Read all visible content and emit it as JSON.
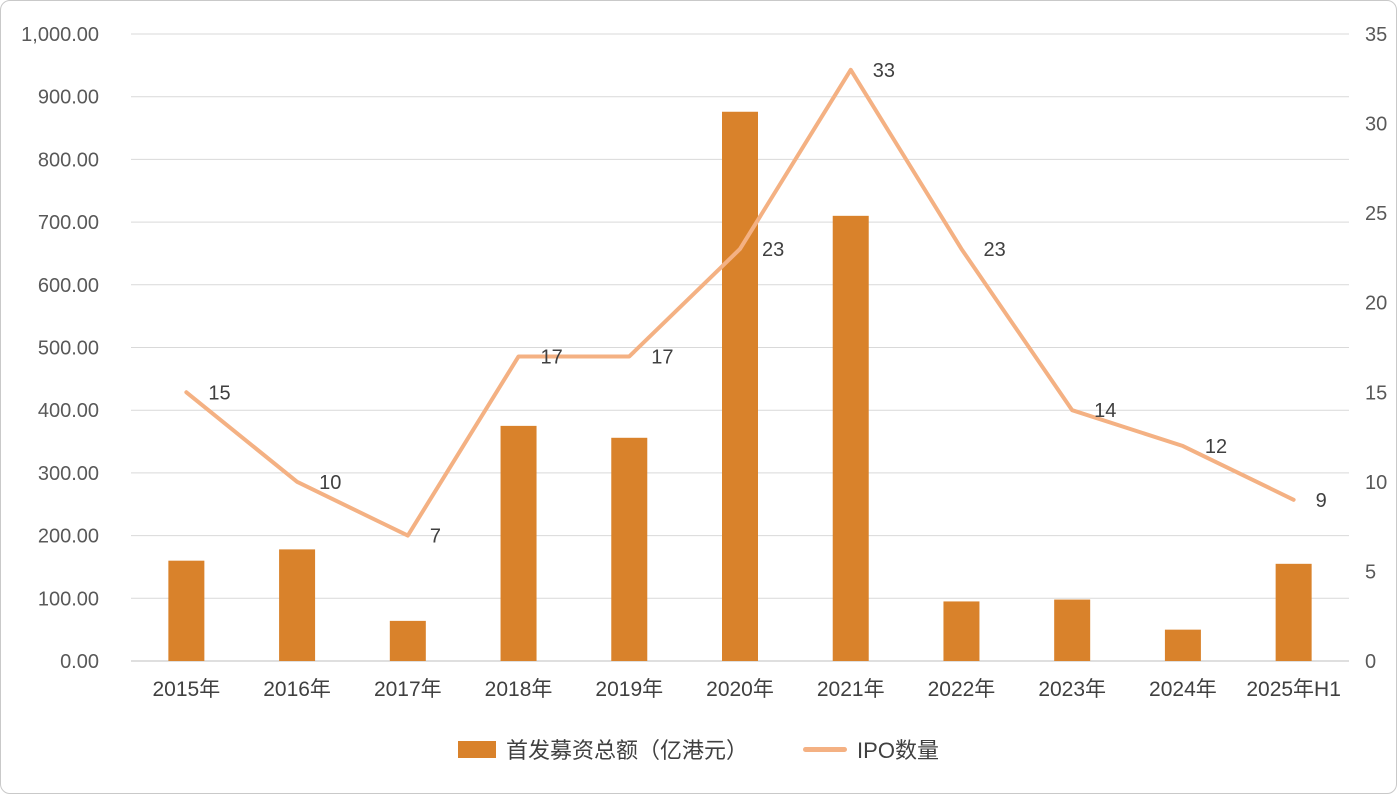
{
  "frame": {
    "background": "#ffffff",
    "border_color": "#c9c9c9"
  },
  "chart_data": {
    "type": "combo-bar-line",
    "title": "",
    "categories": [
      "2015年",
      "2016年",
      "2017年",
      "2018年",
      "2019年",
      "2020年",
      "2021年",
      "2022年",
      "2023年",
      "2024年",
      "2025年H1"
    ],
    "series": [
      {
        "name": "首发募资总额（亿港元）",
        "chart_type": "bar",
        "axis": "left",
        "color": "#D9822B",
        "values": [
          160,
          178,
          64,
          375,
          356,
          876,
          710,
          95,
          98,
          50,
          155
        ]
      },
      {
        "name": "IPO数量",
        "chart_type": "line",
        "axis": "right",
        "color": "#F4B183",
        "values": [
          15,
          10,
          7,
          17,
          17,
          23,
          33,
          23,
          14,
          12,
          9
        ],
        "show_point_labels": true
      }
    ],
    "left_axis": {
      "min": 0,
      "max": 1000,
      "step": 100,
      "ticks": [
        "0.00",
        "100.00",
        "200.00",
        "300.00",
        "400.00",
        "500.00",
        "600.00",
        "700.00",
        "800.00",
        "900.00",
        "1,000.00"
      ]
    },
    "right_axis": {
      "min": 0,
      "max": 35,
      "step": 5,
      "ticks": [
        "0",
        "5",
        "10",
        "15",
        "20",
        "25",
        "30",
        "35"
      ]
    },
    "grid": true,
    "legend_position": "bottom",
    "colors": {
      "gridline": "#d9d9d9",
      "axis_line": "#bfbfbf",
      "tick_label": "#595959",
      "category_label": "#404040",
      "point_label": "#404040"
    }
  }
}
